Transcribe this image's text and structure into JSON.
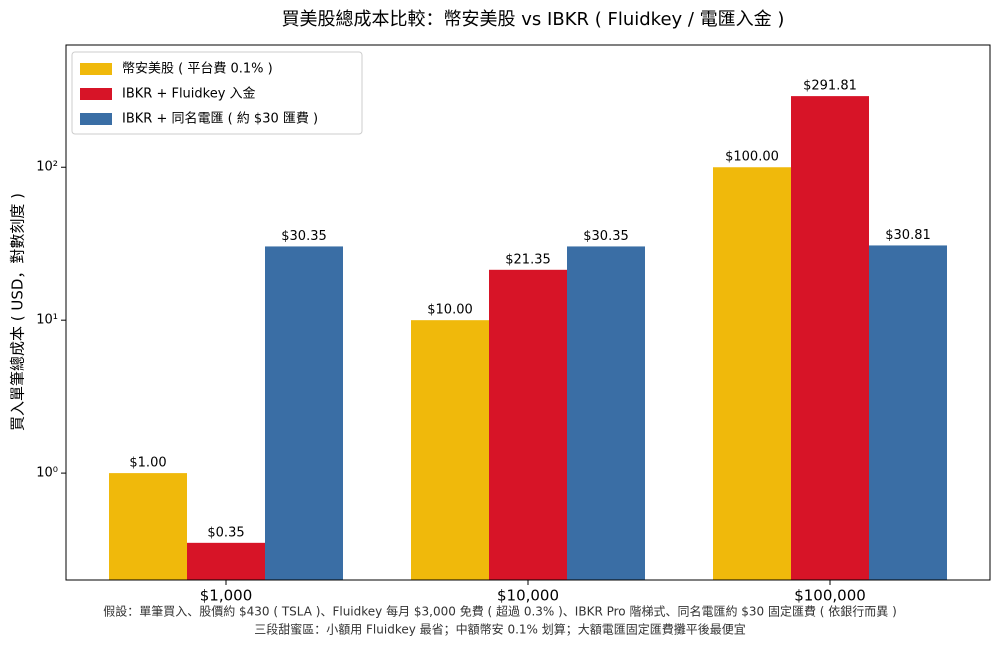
{
  "chart_data": {
    "type": "bar",
    "title": "買美股總成本比較：幣安美股 vs IBKR ( Fluidkey / 電匯入金 )",
    "y_label": "買入單筆總成本 ( USD，對數刻度 )",
    "categories": [
      "$1,000",
      "$10,000",
      "$100,000"
    ],
    "series": [
      {
        "name": "幣安美股 ( 平台費 0.1% )",
        "color": "#f0b90b",
        "values": [
          1,
          10,
          100
        ],
        "value_labels": [
          "$1.00",
          "$10.00",
          "$100.00"
        ]
      },
      {
        "name": "IBKR + Fluidkey 入金",
        "color": "#d71427",
        "values": [
          0.35,
          21.35,
          291.81
        ],
        "value_labels": [
          "$0.35",
          "$21.35",
          "$291.81"
        ]
      },
      {
        "name": "IBKR + 同名電匯 ( 約 $30 匯費 )",
        "color": "#3a6ea5",
        "values": [
          30.35,
          30.35,
          30.81
        ],
        "value_labels": [
          "$30.35",
          "$30.35",
          "$30.81"
        ]
      }
    ],
    "log_y": true,
    "ylim": [
      0.2,
      630
    ],
    "yticks": [
      {
        "value": 1,
        "label": "10⁰"
      },
      {
        "value": 10,
        "label": "10¹"
      },
      {
        "value": 100,
        "label": "10²"
      }
    ],
    "legend": "upper-left",
    "notes": [
      "假設：單筆買入、股價約 $430 ( TSLA )、Fluidkey 每月 $3,000 免費 ( 超過 0.3% )、IBKR Pro 階梯式、同名電匯約 $30 固定匯費 ( 依銀行而異 )",
      "三段甜蜜區：小額用 Fluidkey 最省；中額幣安 0.1% 划算；大額電匯固定匯費攤平後最便宜"
    ]
  }
}
